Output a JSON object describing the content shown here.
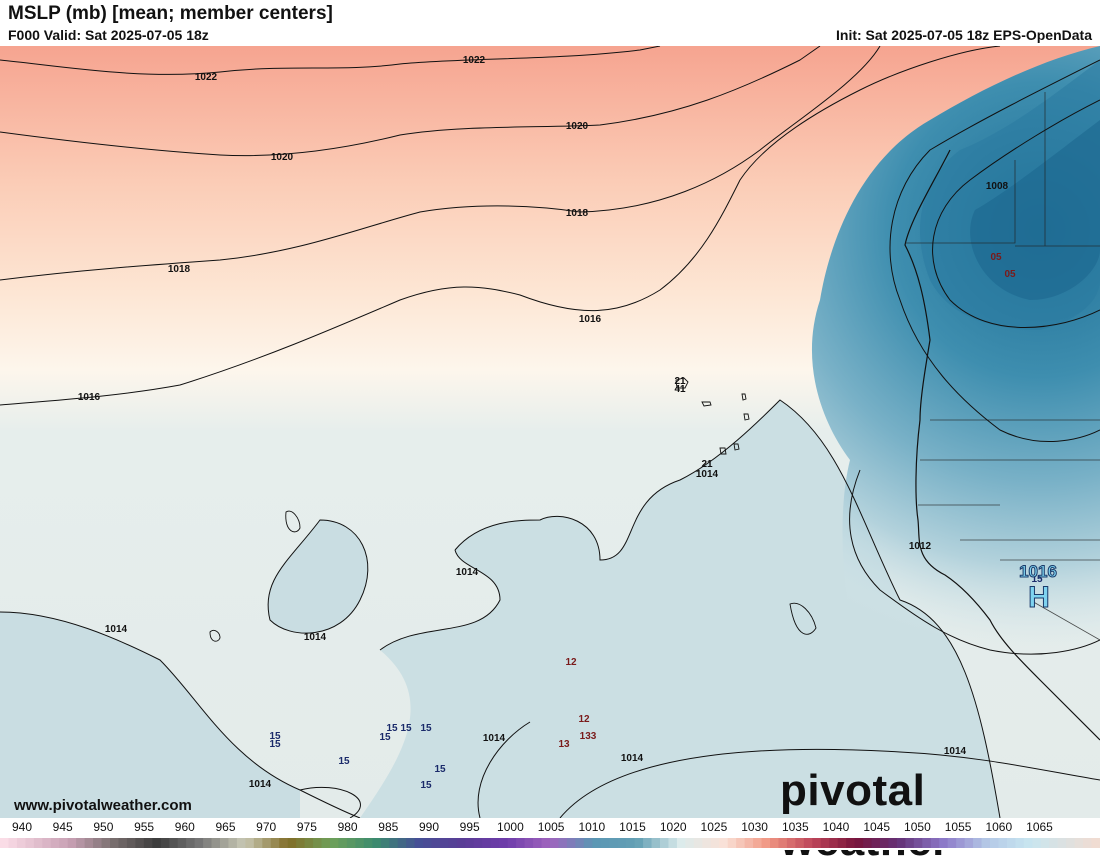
{
  "header": {
    "title": "MSLP (mb) [mean; member centers]",
    "valid": "F000 Valid: Sat 2025-07-05 18z",
    "init": "Init: Sat 2025-07-05 18z EPS-OpenData"
  },
  "footer": {
    "url": "www.pivotalweather.com",
    "brand": "pivotal weather"
  },
  "isobar_labels": [
    "1022",
    "1022",
    "1020",
    "1020",
    "1018",
    "1018",
    "1016",
    "1016",
    "1016",
    "1014",
    "1014",
    "1014",
    "1014",
    "1014",
    "1014",
    "1014",
    "1014",
    "1012",
    "1008"
  ],
  "member_centers": [
    "21",
    "41",
    "21",
    "05",
    "05",
    "12",
    "12",
    "13",
    "133",
    "15",
    "15",
    "15",
    "15",
    "15",
    "15",
    "15",
    "15",
    "15",
    "15"
  ],
  "high_center": {
    "value": "1016",
    "letter": "H"
  },
  "colorbar": {
    "ticks": [
      "940",
      "945",
      "950",
      "955",
      "960",
      "965",
      "970",
      "975",
      "980",
      "985",
      "990",
      "995",
      "1000",
      "1005",
      "1010",
      "1015",
      "1020",
      "1025",
      "1030",
      "1035",
      "1040",
      "1045",
      "1050",
      "1055",
      "1060",
      "1065"
    ]
  },
  "colors": {
    "high_pressure": "#f6a58f",
    "neutral": "#e4ecea",
    "low_pressure": "#2b7fa2",
    "high_marker": "#7fd3f0"
  }
}
